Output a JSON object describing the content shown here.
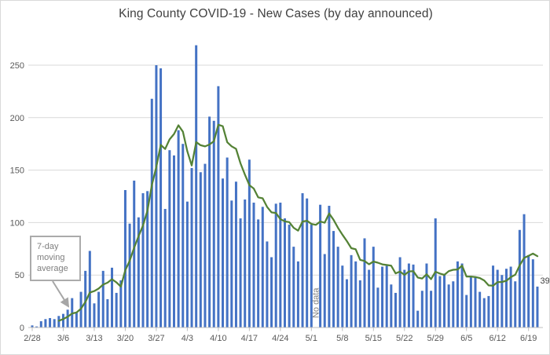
{
  "title": "King County COVID-19 - New Cases (by day announced)",
  "annotation": {
    "text": "7-day moving average"
  },
  "labels": {
    "no_data": "No data",
    "final_value": "39"
  },
  "colors": {
    "bar": "#4472c4",
    "line": "#548235",
    "grid": "#d9d9d9",
    "axis": "#bfbfbf",
    "tick_text": "#595959",
    "title_text": "#404040",
    "annotation_text": "#7f7f7f",
    "annotation_border": "#ababab",
    "arrow": "#a6a6a6",
    "no_data_text": "#808080",
    "data_label_text": "#404040",
    "chart_border": "#d9d9d9"
  },
  "chart_data": {
    "type": "bar",
    "title": "King County COVID-19 - New Cases (by day announced)",
    "xlabel": "",
    "ylabel": "",
    "ylim": [
      0,
      273
    ],
    "grid": "horizontal",
    "legend_position": "none",
    "y_ticks": [
      0,
      50,
      100,
      150,
      200,
      250
    ],
    "x_tick_interval_days": 7,
    "x_tick_labels": [
      "2/28",
      "3/6",
      "3/13",
      "3/20",
      "3/27",
      "4/3",
      "4/10",
      "4/17",
      "4/24",
      "5/1",
      "5/8",
      "5/15",
      "5/22",
      "5/29",
      "6/5",
      "6/12",
      "6/19"
    ],
    "no_data_date": "5/2",
    "final_value_label": {
      "date": "6/21",
      "value": 39
    },
    "series": [
      {
        "name": "New cases by day announced",
        "type": "bar"
      },
      {
        "name": "7-day moving average",
        "type": "line",
        "derived": "trailing 7-day mean of bar values (missing day skipped)"
      }
    ],
    "dates": [
      "2/28",
      "2/29",
      "3/1",
      "3/2",
      "3/3",
      "3/4",
      "3/5",
      "3/6",
      "3/7",
      "3/8",
      "3/9",
      "3/10",
      "3/11",
      "3/12",
      "3/13",
      "3/14",
      "3/15",
      "3/16",
      "3/17",
      "3/18",
      "3/19",
      "3/20",
      "3/21",
      "3/22",
      "3/23",
      "3/24",
      "3/25",
      "3/26",
      "3/27",
      "3/28",
      "3/29",
      "3/30",
      "3/31",
      "4/1",
      "4/2",
      "4/3",
      "4/4",
      "4/5",
      "4/6",
      "4/7",
      "4/8",
      "4/9",
      "4/10",
      "4/11",
      "4/12",
      "4/13",
      "4/14",
      "4/15",
      "4/16",
      "4/17",
      "4/18",
      "4/19",
      "4/20",
      "4/21",
      "4/22",
      "4/23",
      "4/24",
      "4/25",
      "4/26",
      "4/27",
      "4/28",
      "4/29",
      "4/30",
      "5/1",
      "5/2",
      "5/3",
      "5/4",
      "5/5",
      "5/6",
      "5/7",
      "5/8",
      "5/9",
      "5/10",
      "5/11",
      "5/12",
      "5/13",
      "5/14",
      "5/15",
      "5/16",
      "5/17",
      "5/18",
      "5/19",
      "5/20",
      "5/21",
      "5/22",
      "5/23",
      "5/24",
      "5/25",
      "5/26",
      "5/27",
      "5/28",
      "5/29",
      "5/30",
      "5/31",
      "6/1",
      "6/2",
      "6/3",
      "6/4",
      "6/5",
      "6/6",
      "6/7",
      "6/8",
      "6/9",
      "6/10",
      "6/11",
      "6/12",
      "6/13",
      "6/14",
      "6/15",
      "6/16",
      "6/17",
      "6/18",
      "6/19",
      "6/20",
      "6/21"
    ],
    "values": [
      2,
      1,
      6,
      8,
      9,
      8,
      11,
      13,
      17,
      28,
      14,
      34,
      54,
      73,
      23,
      34,
      54,
      27,
      57,
      33,
      45,
      131,
      99,
      140,
      105,
      128,
      130,
      218,
      250,
      247,
      113,
      169,
      164,
      188,
      175,
      120,
      152,
      269,
      148,
      156,
      201,
      197,
      230,
      142,
      162,
      121,
      139,
      104,
      122,
      160,
      119,
      103,
      115,
      82,
      67,
      118,
      119,
      104,
      98,
      77,
      63,
      128,
      123,
      98,
      null,
      117,
      70,
      116,
      92,
      77,
      59,
      46,
      69,
      63,
      45,
      85,
      55,
      77,
      38,
      58,
      59,
      41,
      33,
      67,
      55,
      61,
      60,
      16,
      35,
      61,
      35,
      104,
      49,
      51,
      41,
      44,
      63,
      61,
      31,
      49,
      48,
      34,
      28,
      30,
      59,
      55,
      50,
      56,
      58,
      44,
      93,
      108,
      69,
      65,
      39
    ]
  }
}
